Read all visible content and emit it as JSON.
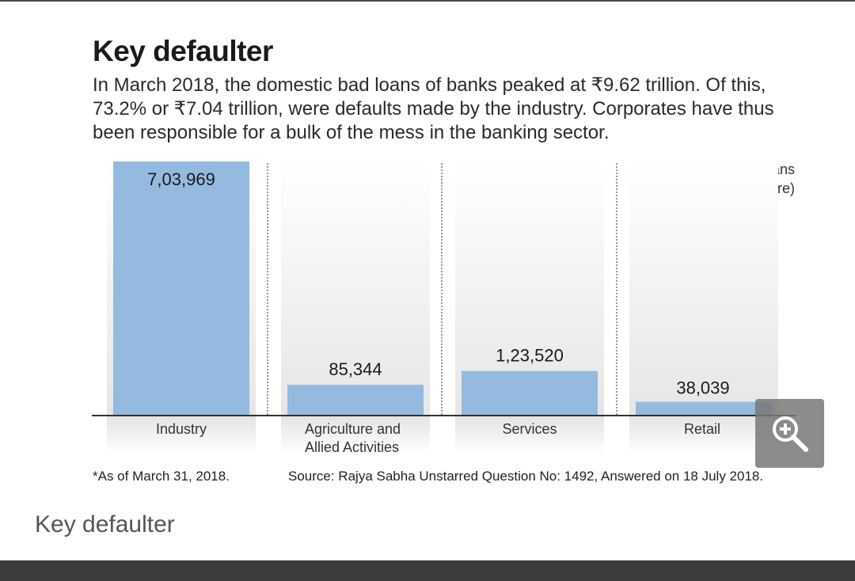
{
  "title": "Key defaulter",
  "subtitle": "In March 2018, the domestic bad loans of banks peaked at ₹9.62 trillion. Of this, 73.2% or ₹7.04 trillion, were defaults made by the industry. Corporates have thus been responsible for a bulk of the mess in the banking sector.",
  "chart_data": {
    "type": "bar",
    "categories": [
      "Industry",
      "Agriculture and Allied Activities",
      "Services",
      "Retail"
    ],
    "category_lines": [
      [
        "Industry"
      ],
      [
        "Agriculture and",
        "Allied Activities"
      ],
      [
        "Services"
      ],
      [
        "Retail"
      ]
    ],
    "values": [
      703969,
      85344,
      123520,
      38039
    ],
    "value_labels": [
      "7,03,969",
      "85,344",
      "1,23,520",
      "38,039"
    ],
    "ylabel": "Total bad loans (in ₹ crore)",
    "ylabel_lines": [
      "Total bad loans",
      "(in ₹ crore)"
    ],
    "ylim": [
      0,
      703969
    ],
    "bar_color": "#94badf",
    "grid": false
  },
  "footnote": "*As of March 31, 2018.",
  "source": "Source: Rajya Sabha Unstarred Question No: 1492, Answered on 18 July 2018.",
  "caption": "Key defaulter",
  "zoom_button": {
    "icon": "zoom-in-icon"
  }
}
